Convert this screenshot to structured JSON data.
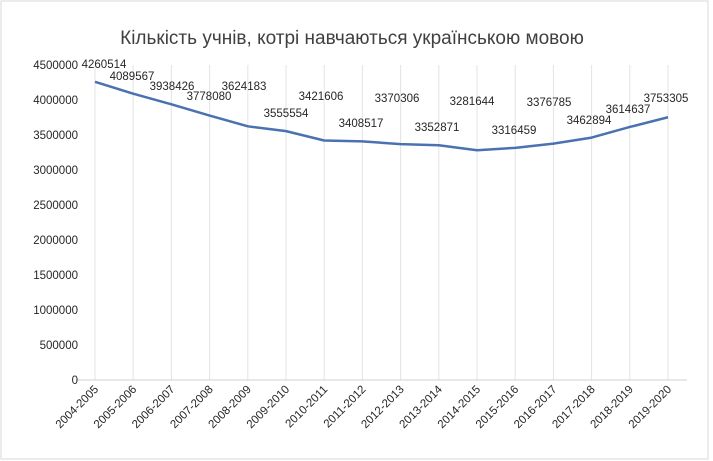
{
  "chart_data": {
    "type": "line",
    "title": "Кількість учнів, котрі навчаються українською мовою",
    "xlabel": "",
    "ylabel": "",
    "categories": [
      "2004-2005",
      "2005-2006",
      "2006-2007",
      "2007-2008",
      "2008-2009",
      "2009-2010",
      "2010-2011",
      "2011-2012",
      "2012-2013",
      "2013-2014",
      "2014-2015",
      "2015-2016",
      "2016-2017",
      "2017-2018",
      "2018-2019",
      "2019-2020"
    ],
    "series": [
      {
        "name": "Кількість учнів",
        "values": [
          4260514,
          4089567,
          3938426,
          3778080,
          3624183,
          3555554,
          3421606,
          3408517,
          3370306,
          3352871,
          3281644,
          3316459,
          3376785,
          3462894,
          3614637,
          3753305
        ],
        "color": "#4A72B0"
      }
    ],
    "ylim": [
      0,
      4500000
    ],
    "yticks": [
      "0",
      "500000",
      "1000000",
      "1500000",
      "2000000",
      "2500000",
      "3000000",
      "3500000",
      "4000000",
      "4500000"
    ],
    "grid": "vertical",
    "legend": "none"
  }
}
